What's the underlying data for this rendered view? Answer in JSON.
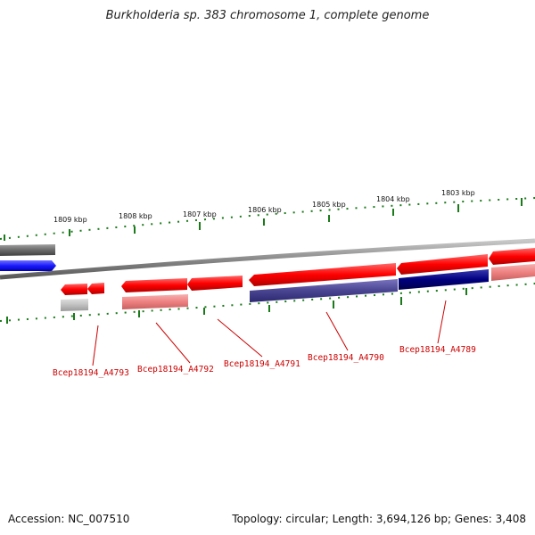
{
  "title": "Burkholderia sp. 383 chromosome 1, complete genome",
  "footer": {
    "accession": "Accession: NC_007510",
    "summary": "Topology: circular; Length: 3,694,126 bp; Genes: 3,408"
  },
  "scale_labels": [
    "1809 kbp",
    "1808 kbp",
    "1807 kbp",
    "1806 kbp",
    "1805 kbp",
    "1804 kbp",
    "1803 kbp"
  ],
  "gene_labels": [
    "Bcep18194_A4793",
    "Bcep18194_A4792",
    "Bcep18194_A4791",
    "Bcep18194_A4790",
    "Bcep18194_A4789"
  ],
  "colors": {
    "forward_gene": "#ff0000",
    "reverse_gene": "#ff0000",
    "backbone": "#8a8a8a",
    "tick": "#1a7a1a",
    "label": "#cc0000",
    "blue_feature": "#1a1aff",
    "navy_feature": "#000080",
    "slate_feature": "#4a4590",
    "pink_feature": "#f08080",
    "gray_feature": "#6a6a6a"
  }
}
